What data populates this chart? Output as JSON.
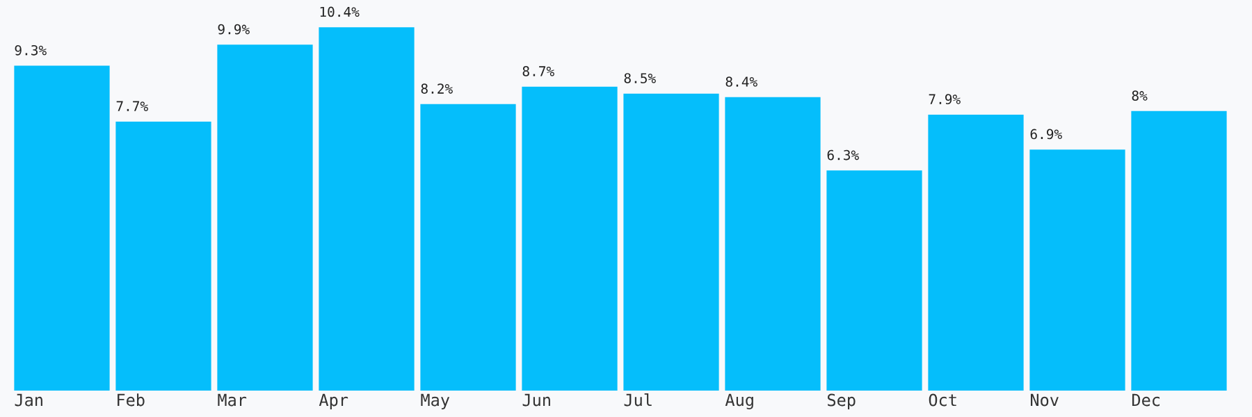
{
  "chart_data": {
    "type": "bar",
    "categories": [
      "Jan",
      "Feb",
      "Mar",
      "Apr",
      "May",
      "Jun",
      "Jul",
      "Aug",
      "Sep",
      "Oct",
      "Nov",
      "Dec"
    ],
    "values": [
      9.3,
      7.7,
      9.9,
      10.4,
      8.2,
      8.7,
      8.5,
      8.4,
      6.3,
      7.9,
      6.9,
      8
    ],
    "value_labels": [
      "9.3%",
      "7.7%",
      "9.9%",
      "10.4%",
      "8.2%",
      "8.7%",
      "8.5%",
      "8.4%",
      "6.3%",
      "7.9%",
      "6.9%",
      "8%"
    ],
    "color": "#05befb"
  }
}
